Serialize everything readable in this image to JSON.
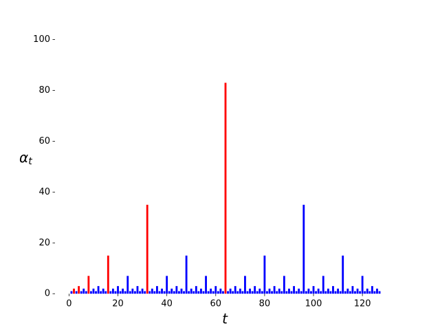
{
  "chart_data": {
    "type": "bar",
    "x_label": "t",
    "y_label": "α",
    "y_label_sub": "t",
    "x": [
      1,
      2,
      3,
      4,
      5,
      6,
      7,
      8,
      9,
      10,
      11,
      12,
      13,
      14,
      15,
      16,
      17,
      18,
      19,
      20,
      21,
      22,
      23,
      24,
      25,
      26,
      27,
      28,
      29,
      30,
      31,
      32,
      33,
      34,
      35,
      36,
      37,
      38,
      39,
      40,
      41,
      42,
      43,
      44,
      45,
      46,
      47,
      48,
      49,
      50,
      51,
      52,
      53,
      54,
      55,
      56,
      57,
      58,
      59,
      60,
      61,
      62,
      63,
      64,
      65,
      66,
      67,
      68,
      69,
      70,
      71,
      72,
      73,
      74,
      75,
      76,
      77,
      78,
      79,
      80,
      81,
      82,
      83,
      84,
      85,
      86,
      87,
      88,
      89,
      90,
      91,
      92,
      93,
      94,
      95,
      96,
      97,
      98,
      99,
      100,
      101,
      102,
      103,
      104,
      105,
      106,
      107,
      108,
      109,
      110,
      111,
      112,
      113,
      114,
      115,
      116,
      117,
      118,
      119,
      120,
      121,
      122,
      123,
      124,
      125,
      126,
      127
    ],
    "values": [
      1,
      2,
      1,
      3,
      1,
      2,
      1,
      7,
      1,
      2,
      1,
      3,
      1,
      2,
      1,
      15,
      1,
      2,
      1,
      3,
      1,
      2,
      1,
      7,
      1,
      2,
      1,
      3,
      1,
      2,
      1,
      35,
      1,
      2,
      1,
      3,
      1,
      2,
      1,
      7,
      1,
      2,
      1,
      3,
      1,
      2,
      1,
      15,
      1,
      2,
      1,
      3,
      1,
      2,
      1,
      7,
      1,
      2,
      1,
      3,
      1,
      2,
      1,
      83,
      1,
      2,
      1,
      3,
      1,
      2,
      1,
      7,
      1,
      2,
      1,
      3,
      1,
      2,
      1,
      15,
      1,
      2,
      1,
      3,
      1,
      2,
      1,
      7,
      1,
      2,
      1,
      3,
      1,
      2,
      1,
      35,
      1,
      2,
      1,
      3,
      1,
      2,
      1,
      7,
      1,
      2,
      1,
      3,
      1,
      2,
      1,
      15,
      1,
      2,
      1,
      3,
      1,
      2,
      1,
      7,
      1,
      2,
      1,
      3,
      1,
      2,
      1
    ],
    "color": "#0000ff",
    "highlight": {
      "color": "#ff0000",
      "x": [
        2,
        4,
        8,
        16,
        32,
        64
      ]
    },
    "bar_width": 0.8,
    "xlim": [
      -5.74,
      133.74
    ],
    "xticks": [
      0,
      20,
      40,
      60,
      80,
      100,
      120
    ],
    "ylim": [
      0,
      100
    ],
    "yticks": [
      0,
      20,
      40,
      60,
      80,
      100
    ]
  }
}
